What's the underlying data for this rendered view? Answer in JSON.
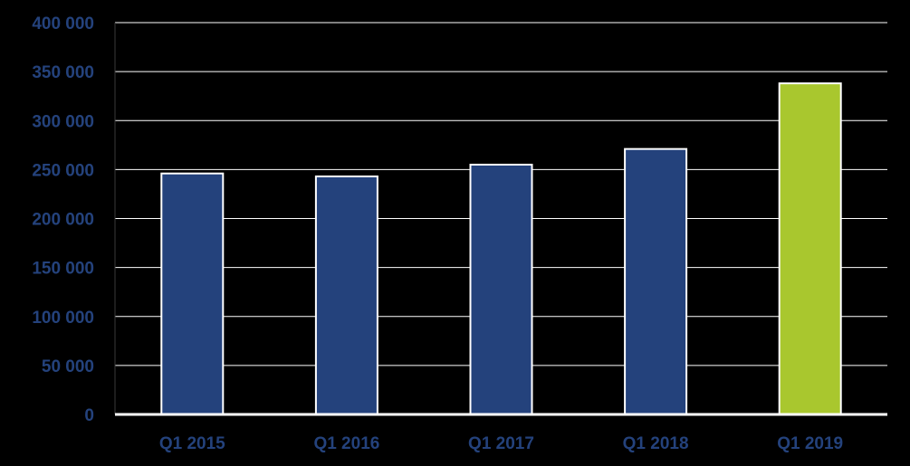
{
  "chart_data": {
    "type": "bar",
    "title": "",
    "xlabel": "",
    "ylabel": "",
    "categories": [
      "Q1 2015",
      "Q1 2016",
      "Q1 2017",
      "Q1 2018",
      "Q1 2019"
    ],
    "values": [
      246000,
      243000,
      255000,
      271000,
      338000
    ],
    "ylim": [
      0,
      400000
    ],
    "yticks": [
      0,
      50000,
      100000,
      150000,
      200000,
      250000,
      300000,
      350000,
      400000
    ],
    "ytick_labels": [
      "0",
      "50 000",
      "100 000",
      "150 000",
      "200 000",
      "250 000",
      "300 000",
      "350 000",
      "400 000"
    ],
    "grid": true,
    "legend": "none",
    "colors": {
      "background": "#000000",
      "bar_default": "#24427C",
      "bar_highlight": "#A9C72E",
      "bar_outline": "#FFFFFF",
      "gridline": "#FFFFFF",
      "tick_label": "#24427C"
    },
    "highlight_index": 4
  }
}
